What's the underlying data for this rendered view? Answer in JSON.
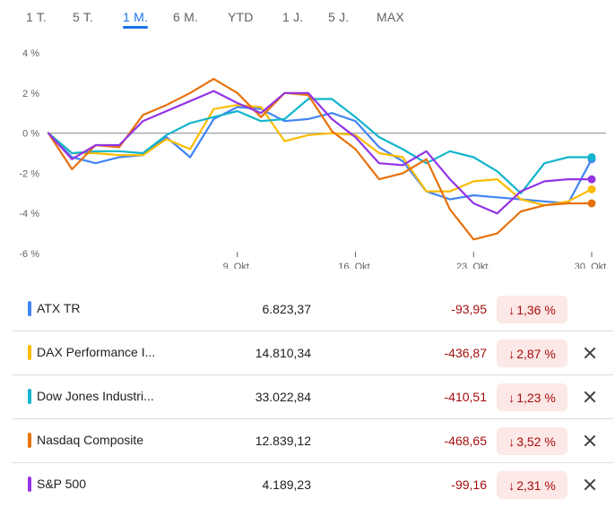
{
  "ranges": [
    "1 T.",
    "5 T.",
    "1 M.",
    "6 M.",
    "YTD",
    "1 J.",
    "5 J.",
    "MAX"
  ],
  "active_range": "1 M.",
  "chart_data": {
    "type": "line",
    "title": "",
    "xlabel": "",
    "ylabel": "",
    "ylim": [
      -6,
      4
    ],
    "y_ticks": [
      "4 %",
      "2 %",
      "0 %",
      "-2 %",
      "-4 %",
      "-6 %"
    ],
    "x_tick_labels": [
      {
        "label": "9. Okt.",
        "index": 8
      },
      {
        "label": "16. Okt.",
        "index": 13
      },
      {
        "label": "23. Okt.",
        "index": 18
      },
      {
        "label": "30. Okt.",
        "index": 23
      }
    ],
    "zero_line": true,
    "point_count": 24,
    "series": [
      {
        "name": "ATX TR",
        "color": "#4285f4",
        "values": [
          0,
          -1.2,
          -1.5,
          -1.2,
          -1.1,
          -0.2,
          -1.2,
          0.7,
          1.3,
          1.2,
          0.6,
          0.7,
          1.0,
          0.6,
          -0.7,
          -1.4,
          -2.9,
          -3.3,
          -3.1,
          -3.2,
          -3.3,
          -3.4,
          -3.5,
          -1.3
        ]
      },
      {
        "name": "DAX Performance I...",
        "color": "#fbbc04",
        "values": [
          0,
          -1.0,
          -1.0,
          -1.1,
          -1.1,
          -0.3,
          -0.8,
          1.2,
          1.4,
          1.3,
          -0.4,
          -0.1,
          0.0,
          -0.1,
          -1.0,
          -1.2,
          -2.9,
          -2.9,
          -2.4,
          -2.3,
          -3.3,
          -3.6,
          -3.4,
          -2.8
        ]
      },
      {
        "name": "Dow Jones Industri...",
        "color": "#12b5cb",
        "values": [
          0,
          -1.0,
          -0.9,
          -0.9,
          -1.0,
          -0.1,
          0.5,
          0.8,
          1.1,
          0.6,
          0.7,
          1.7,
          1.7,
          0.8,
          -0.2,
          -0.8,
          -1.5,
          -0.9,
          -1.2,
          -1.9,
          -3.0,
          -1.5,
          -1.2,
          -1.2
        ]
      },
      {
        "name": "Nasdaq Composite",
        "color": "#e8710a",
        "values": [
          0,
          -1.8,
          -0.6,
          -0.7,
          0.9,
          1.4,
          2.0,
          2.7,
          2.0,
          0.8,
          2.0,
          1.9,
          0.1,
          -0.8,
          -2.3,
          -2.0,
          -1.3,
          -3.8,
          -5.3,
          -5.0,
          -3.9,
          -3.6,
          -3.5,
          -3.5
        ]
      },
      {
        "name": "S&P 500",
        "color": "#9334e6",
        "values": [
          0,
          -1.3,
          -0.6,
          -0.6,
          0.6,
          1.1,
          1.6,
          2.1,
          1.5,
          1.0,
          2.0,
          2.0,
          0.7,
          -0.2,
          -1.5,
          -1.6,
          -0.9,
          -2.3,
          -3.5,
          -4.0,
          -2.9,
          -2.4,
          -2.3,
          -2.3
        ]
      }
    ]
  },
  "rows": [
    {
      "name": "ATX TR",
      "color": "#4285f4",
      "price": "6.823,37",
      "change": "-93,95",
      "pct": "1,36 %",
      "removable": false
    },
    {
      "name": "DAX Performance I...",
      "color": "#fbbc04",
      "price": "14.810,34",
      "change": "-436,87",
      "pct": "2,87 %",
      "removable": true
    },
    {
      "name": "Dow Jones Industri...",
      "color": "#12b5cb",
      "price": "33.022,84",
      "change": "-410,51",
      "pct": "1,23 %",
      "removable": true
    },
    {
      "name": "Nasdaq Composite",
      "color": "#e8710a",
      "price": "12.839,12",
      "change": "-468,65",
      "pct": "3,52 %",
      "removable": true
    },
    {
      "name": "S&P 500",
      "color": "#9334e6",
      "price": "4.189,23",
      "change": "-99,16",
      "pct": "2,31 %",
      "removable": true
    }
  ],
  "icons": {
    "down_arrow": "arrow-down-icon",
    "remove": "close-icon"
  }
}
